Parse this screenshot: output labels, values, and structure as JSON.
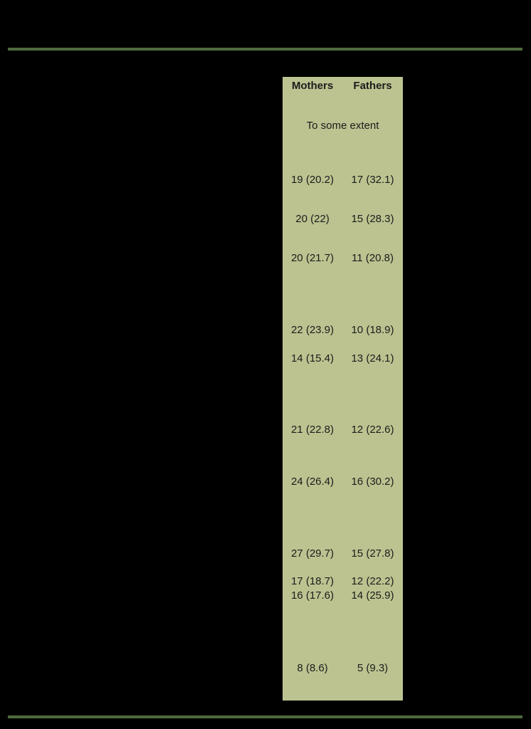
{
  "colors": {
    "background": "#000000",
    "highlight": "#bcc390",
    "rule": "#4e6a3e",
    "text": "#1c1c1c"
  },
  "table": {
    "columns": [
      "Mothers",
      "Fathers"
    ],
    "subheader": "To some extent",
    "rows": [
      {
        "mothers": "19 (20.2)",
        "fathers": "17 (32.1)"
      },
      {
        "mothers": "20 (22)",
        "fathers": "15 (28.3)"
      },
      {
        "mothers": "20 (21.7)",
        "fathers": "11 (20.8)"
      },
      {
        "mothers": "22 (23.9)",
        "fathers": "10 (18.9)"
      },
      {
        "mothers": "14 (15.4)",
        "fathers": "13 (24.1)"
      },
      {
        "mothers": "21 (22.8)",
        "fathers": "12 (22.6)"
      },
      {
        "mothers": "24 (26.4)",
        "fathers": "16 (30.2)"
      },
      {
        "mothers": "27 (29.7)",
        "fathers": "15 (27.8)"
      },
      {
        "mothers": "17 (18.7)",
        "fathers": "12 (22.2)"
      },
      {
        "mothers": "16 (17.6)",
        "fathers": "14 (25.9)"
      },
      {
        "mothers": "8 (8.6)",
        "fathers": "5 (9.3)"
      }
    ]
  }
}
